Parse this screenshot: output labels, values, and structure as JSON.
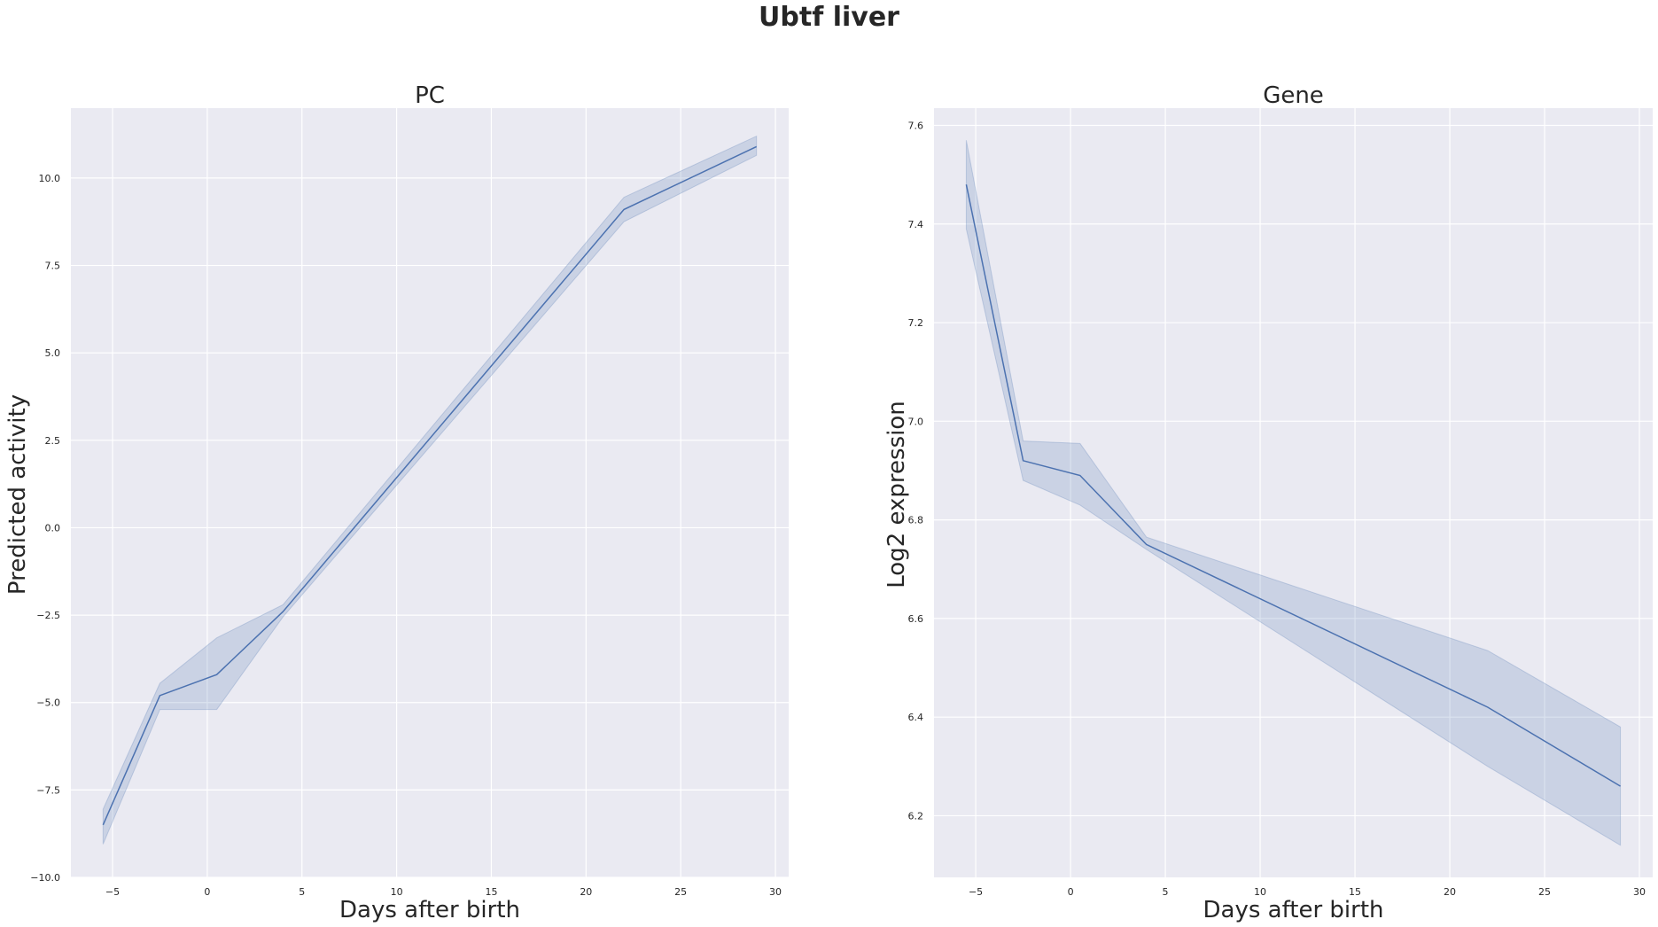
{
  "figure": {
    "title": "Ubtf liver"
  },
  "chart_data": [
    {
      "type": "line",
      "title": "PC",
      "xlabel": "Days after birth",
      "ylabel": "Predicted activity",
      "xlim": [
        -7.2,
        30.7
      ],
      "ylim": [
        -10.0,
        12.0
      ],
      "xticks": [
        -5,
        0,
        5,
        10,
        15,
        20,
        25,
        30
      ],
      "xtick_labels": [
        "−5",
        "0",
        "5",
        "10",
        "15",
        "20",
        "25",
        "30"
      ],
      "yticks": [
        -10,
        -7.5,
        -5,
        -2.5,
        0,
        2.5,
        5,
        7.5,
        10
      ],
      "ytick_labels": [
        "−10.0",
        "−7.5",
        "−5.0",
        "−2.5",
        "0.0",
        "2.5",
        "5.0",
        "7.5",
        "10.0"
      ],
      "grid": true,
      "series": [
        {
          "x": [
            -5.5,
            -2.5,
            0.5,
            4,
            22,
            29
          ],
          "y": [
            -8.5,
            -4.8,
            -4.2,
            -2.4,
            9.1,
            10.9
          ],
          "ci_low": [
            -9.05,
            -5.2,
            -5.2,
            -2.55,
            8.75,
            10.65
          ],
          "ci_high": [
            -8.05,
            -4.45,
            -3.15,
            -2.2,
            9.45,
            11.2
          ],
          "color": "#4c72b0"
        }
      ]
    },
    {
      "type": "line",
      "title": "Gene",
      "xlabel": "Days after birth",
      "ylabel": "Log2 expression",
      "xlim": [
        -7.2,
        30.7
      ],
      "ylim": [
        6.075,
        7.635
      ],
      "xticks": [
        -5,
        0,
        5,
        10,
        15,
        20,
        25,
        30
      ],
      "xtick_labels": [
        "−5",
        "0",
        "5",
        "10",
        "15",
        "20",
        "25",
        "30"
      ],
      "yticks": [
        6.2,
        6.4,
        6.6,
        6.8,
        7.0,
        7.2,
        7.4,
        7.6
      ],
      "ytick_labels": [
        "6.2",
        "6.4",
        "6.6",
        "6.8",
        "7.0",
        "7.2",
        "7.4",
        "7.6"
      ],
      "grid": true,
      "series": [
        {
          "x": [
            -5.5,
            -2.5,
            0.5,
            4,
            22,
            29
          ],
          "y": [
            7.48,
            6.92,
            6.89,
            6.75,
            6.42,
            6.26
          ],
          "ci_low": [
            7.39,
            6.88,
            6.83,
            6.74,
            6.3,
            6.14
          ],
          "ci_high": [
            7.57,
            6.96,
            6.955,
            6.765,
            6.535,
            6.38
          ],
          "color": "#4c72b0"
        }
      ]
    }
  ]
}
